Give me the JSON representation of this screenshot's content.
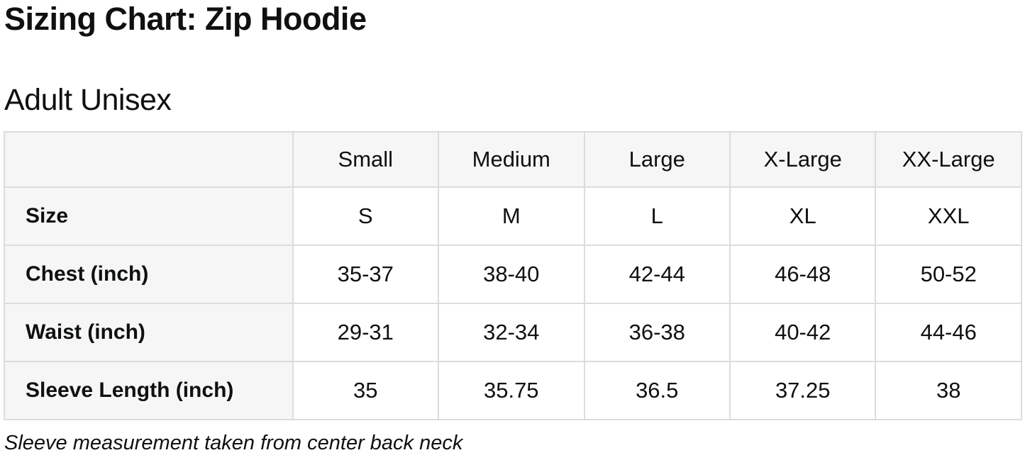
{
  "page_title": "Sizing Chart: Zip Hoodie",
  "section_title": "Adult Unisex",
  "footnote": "Sleeve measurement taken from center back neck",
  "colors": {
    "page_bg": "#ffffff",
    "cell_bg": "#f6f6f6",
    "border": "#dcdcdc",
    "text": "#0f1111"
  },
  "chart_data": {
    "type": "table",
    "title": "Sizing Chart: Zip Hoodie",
    "subtitle": "Adult Unisex",
    "columns": [
      "",
      "Small",
      "Medium",
      "Large",
      "X-Large",
      "XX-Large"
    ],
    "rows": [
      {
        "label": "Size",
        "values": [
          "S",
          "M",
          "L",
          "XL",
          "XXL"
        ]
      },
      {
        "label": "Chest (inch)",
        "values": [
          "35-37",
          "38-40",
          "42-44",
          "46-48",
          "50-52"
        ]
      },
      {
        "label": "Waist (inch)",
        "values": [
          "29-31",
          "32-34",
          "36-38",
          "40-42",
          "44-46"
        ]
      },
      {
        "label": "Sleeve Length (inch)",
        "values": [
          "35",
          "35.75",
          "36.5",
          "37.25",
          "38"
        ]
      }
    ],
    "note": "Sleeve measurement taken from center back neck"
  }
}
